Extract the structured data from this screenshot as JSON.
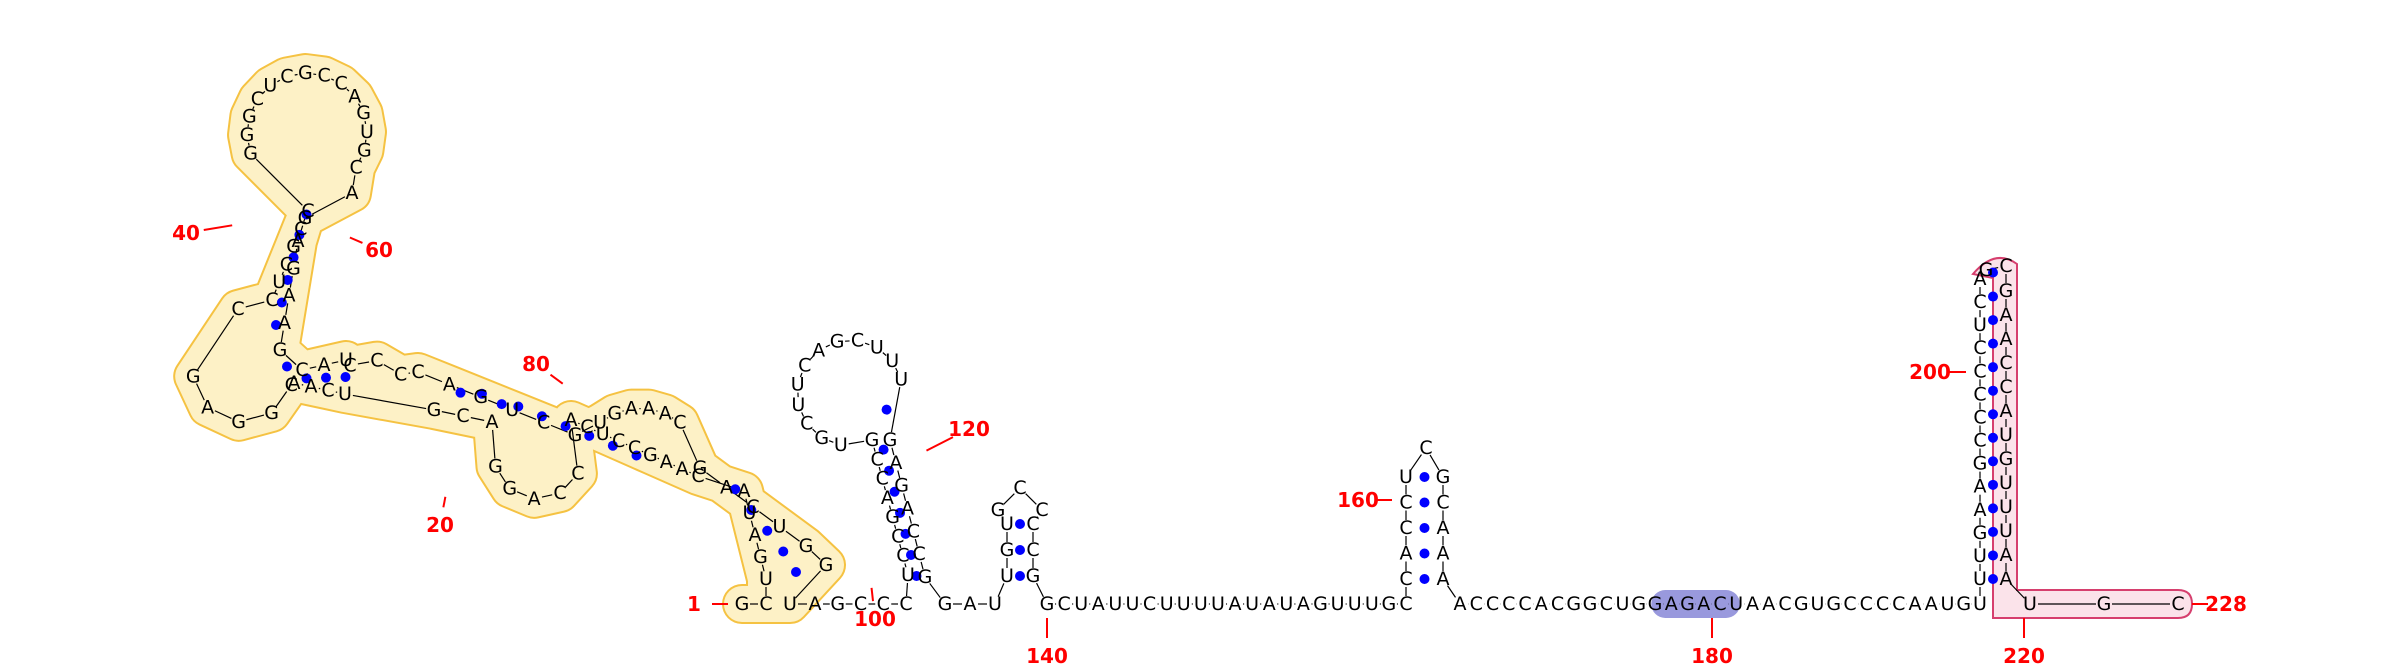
{
  "structure": {
    "sequence": "GCUGAUACAAGCCUCACCAGGACGUCAACGGAGCCUCGCCGGGCUCGCCAGUGCAGAGAAGCAUCCCCAGUCGUGAAACGACUGGUAGCCCUCCGACCGUGCUUCAGCUUUGAGACCGGAUUGUGCCCCGGCUAUUCUUUUAUAUAGUUUGCCACCUCGCAAAACCCCACGGCUGGAGACUAACGUGCCCCAAUGUUUGAAGCCCCCUCAGCGAACCAUGUUUAAUGC",
    "position_labels": [
      {
        "value": "1"
      },
      {
        "value": "20"
      },
      {
        "value": "40"
      },
      {
        "value": "60"
      },
      {
        "value": "80"
      },
      {
        "value": "100"
      },
      {
        "value": "120"
      },
      {
        "value": "140"
      },
      {
        "value": "160"
      },
      {
        "value": "180"
      },
      {
        "value": "200"
      },
      {
        "value": "220"
      },
      {
        "value": "228"
      }
    ],
    "highlight_colors": {
      "domain_outline": "#f5c242",
      "domain_fill": "#fdf1c6",
      "motif_fill": "#9999dd",
      "terminator_outline": "#d63f6e",
      "terminator_fill": "#fbe3ea",
      "base_pair_dot": "#0000ff",
      "position_label": "#ff0000"
    }
  }
}
